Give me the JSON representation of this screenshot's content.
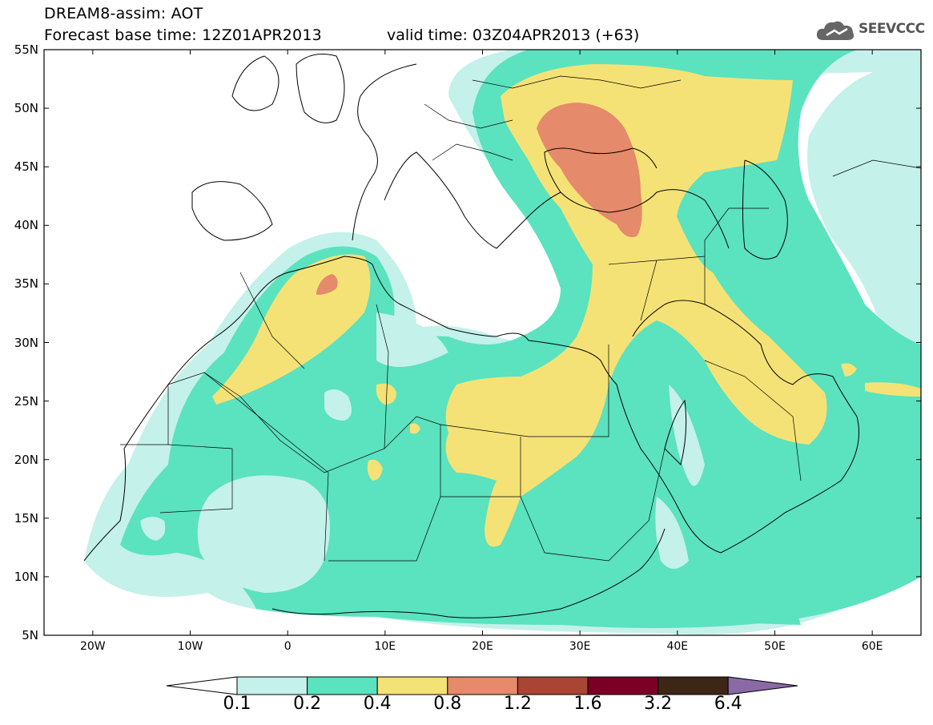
{
  "header": {
    "title": "DREAM8-assim: AOT",
    "base_time": "Forecast base time: 12Z01APR2013",
    "valid_time": "valid time: 03Z04APR2013 (+63)",
    "logo_text": "SEEVCCC"
  },
  "map": {
    "lat_labels": [
      "55N",
      "50N",
      "45N",
      "40N",
      "35N",
      "30N",
      "25N",
      "20N",
      "15N",
      "10N",
      "5N"
    ],
    "lon_labels": [
      "20W",
      "10W",
      "0",
      "10E",
      "20E",
      "30E",
      "40E",
      "50E",
      "60E"
    ],
    "lon_range": [
      -25,
      65
    ],
    "lat_range": [
      5,
      55
    ]
  },
  "legend": {
    "levels": [
      "0.1",
      "0.2",
      "0.4",
      "0.8",
      "1.2",
      "1.6",
      "3.2",
      "6.4"
    ],
    "colors": [
      "#ffffff",
      "#c4f1ea",
      "#5be2bf",
      "#f5e276",
      "#e58a6a",
      "#a84535",
      "#7a0026",
      "#3d2616",
      "#8a6aa6"
    ]
  },
  "colors": {
    "c01": "#c4f1ea",
    "c02": "#5be2bf",
    "c04": "#f5e276",
    "c08": "#e58a6a",
    "border": "#000000"
  }
}
